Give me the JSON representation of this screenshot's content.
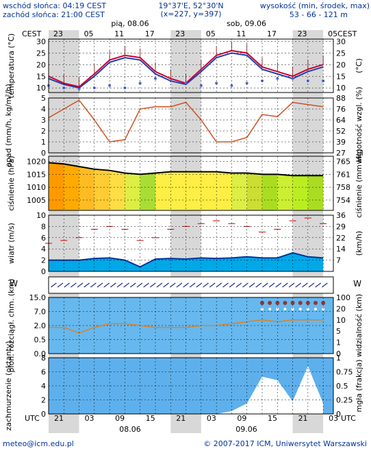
{
  "header": {
    "sunrise": "wschód słońca: 04:19 CEST",
    "sunset": "zachód słońca: 21:00 CEST",
    "coords": "19°37'E, 52°30'N",
    "grid": "(x=227, y=397)",
    "elev_label": "wysokość (min, środek, max)",
    "elev_values": "53 - 66 - 121 m",
    "day1": "pią, 08.06",
    "day2": "sob, 09.06",
    "tz_top": "CEST",
    "tz_bottom": "UTC"
  },
  "axes": {
    "top_hours": [
      "23",
      "05",
      "11",
      "17",
      "23",
      "05",
      "11",
      "17",
      "23",
      "05"
    ],
    "bottom_hours": [
      "21",
      "03",
      "09",
      "15",
      "21",
      "03",
      "09",
      "15",
      "21",
      "03"
    ],
    "bottom_dates": [
      "08.06",
      "09.06"
    ]
  },
  "footer": {
    "email": "meteo@icm.edu.pl",
    "copyright": "© 2007-2017 ICM, Uniwersytet Warszawski"
  },
  "chart_data": [
    {
      "type": "line",
      "panel": "temperature",
      "ylabel": "temperatura (°C)",
      "ylabel_right": "(°C)",
      "ylim": [
        8,
        31
      ],
      "yticks": [
        10,
        15,
        20,
        25,
        30
      ],
      "x_hours_utc": [
        21,
        24,
        27,
        30,
        33,
        36,
        39,
        42,
        45,
        48,
        51,
        54,
        57,
        60,
        63,
        66,
        69,
        72,
        75
      ],
      "series": [
        {
          "values": [
            15,
            12,
            10.5,
            16,
            22,
            24,
            23,
            17,
            14,
            12,
            18,
            24,
            26,
            25,
            19,
            17,
            15,
            18,
            20
          ]
        },
        {
          "values": [
            14,
            11.5,
            10,
            15,
            21,
            23,
            22,
            16,
            13,
            11.5,
            17,
            23,
            25,
            24,
            18,
            16,
            14,
            17,
            19
          ]
        },
        {
          "values": [
            11,
            10,
            9.5,
            10,
            11,
            10,
            12,
            14,
            13,
            12,
            11,
            12,
            11,
            12,
            13,
            14,
            14,
            13,
            13
          ]
        }
      ]
    },
    {
      "type": "line",
      "panel": "precipitation",
      "ylabel": "opad (mm/h, kg/m²/h)",
      "ylabel_right": "wilgotność wzgl. (%)",
      "ylim": [
        0,
        5
      ],
      "yticks": [
        0,
        1,
        2,
        3,
        4,
        5
      ],
      "yticks_right": [
        27,
        39,
        52,
        64,
        76,
        88
      ],
      "x_hours_utc": [
        21,
        24,
        27,
        30,
        33,
        36,
        39,
        42,
        45,
        48,
        51,
        54,
        57,
        60,
        63,
        66,
        69,
        72,
        75
      ],
      "series": [
        {
          "values": [
            3.2,
            4,
            4.8,
            3,
            1,
            1.2,
            4,
            4.2,
            4.2,
            4.6,
            3,
            1,
            1,
            1.4,
            3.5,
            3.3,
            4.6,
            4.4,
            4.2
          ]
        }
      ]
    },
    {
      "type": "area",
      "panel": "pressure",
      "ylabel": "ciśnienie (hPa)",
      "ylabel_right": "ciśnienie (mm Hg)",
      "ylim": [
        1001,
        1022
      ],
      "yticks": [
        1005,
        1010,
        1015,
        1020
      ],
      "yticks_right": [
        754,
        758,
        761,
        765
      ],
      "x_hours_utc": [
        21,
        24,
        27,
        30,
        33,
        36,
        39,
        42,
        45,
        48,
        51,
        54,
        57,
        60,
        63,
        66,
        69,
        72,
        75
      ],
      "series": [
        {
          "values": [
            1019.5,
            1019,
            1018,
            1017,
            1016.5,
            1015.5,
            1015,
            1015.5,
            1016,
            1016,
            1016,
            1016,
            1015.5,
            1015.5,
            1015,
            1015,
            1014.5,
            1014.5,
            1014.5
          ]
        }
      ]
    },
    {
      "type": "area",
      "panel": "wind",
      "ylabel": "wiatr (m/s)",
      "ylabel_right": "(km/h)",
      "ylim": [
        0,
        10
      ],
      "yticks": [
        0,
        2,
        4,
        6,
        8,
        10
      ],
      "yticks_right": [
        7,
        14,
        22,
        29,
        36
      ],
      "x_hours_utc": [
        21,
        24,
        27,
        30,
        33,
        36,
        39,
        42,
        45,
        48,
        51,
        54,
        57,
        60,
        63,
        66,
        69,
        72,
        75
      ],
      "series": [
        {
          "values": [
            2,
            2,
            2,
            2.3,
            2.4,
            2,
            0.8,
            2.2,
            2.3,
            2.2,
            2.4,
            2.3,
            2.4,
            2.6,
            2.4,
            2.4,
            3.3,
            2.6,
            2.4
          ]
        },
        {
          "values": [
            5,
            5.5,
            6,
            7.5,
            8,
            7.5,
            5.5,
            6,
            7.5,
            8,
            8.5,
            9,
            8.5,
            8,
            7,
            7.5,
            9,
            9.5,
            8.5
          ]
        }
      ]
    },
    {
      "type": "line",
      "panel": "visibility",
      "ylabel": "pion. rozciągł. chm. (km)",
      "ylabel_right": "widzialność (km)",
      "ylim": [
        0,
        15
      ],
      "yticks": [
        "0.0",
        "0.5",
        "2.0",
        "7.0",
        "15.0"
      ],
      "yticks_right": [
        0,
        1,
        5,
        10,
        20,
        100
      ],
      "x_hours_utc": [
        21,
        24,
        27,
        30,
        33,
        36,
        39,
        42,
        45,
        48,
        51,
        54,
        57,
        60,
        63,
        66,
        69,
        72,
        75
      ],
      "series": [
        {
          "values": [
            7,
            7,
            5.5,
            7,
            8,
            8,
            7.5,
            7,
            7,
            7,
            7.5,
            7.5,
            8,
            8.5,
            9,
            8.5,
            9,
            9,
            9
          ]
        }
      ]
    },
    {
      "type": "area",
      "panel": "cloud",
      "ylabel": "zachmurzenie (oktanty)",
      "ylabel_right": "mgła (frakcja)",
      "ylim": [
        0,
        8
      ],
      "yticks": [
        0,
        2,
        4,
        6,
        8
      ],
      "yticks_right": [
        0,
        0.25,
        0.5,
        0.75,
        1
      ],
      "x_hours_utc": [
        21,
        24,
        27,
        30,
        33,
        36,
        39,
        42,
        45,
        48,
        51,
        54,
        57,
        60,
        63,
        66,
        69,
        72,
        75
      ],
      "series": [
        {
          "values": [
            0,
            0,
            0,
            0,
            0,
            0,
            0,
            0,
            0,
            0,
            0,
            0,
            0.4,
            1.5,
            5.3,
            4.8,
            1.8,
            6.8,
            1.5
          ]
        }
      ]
    }
  ]
}
